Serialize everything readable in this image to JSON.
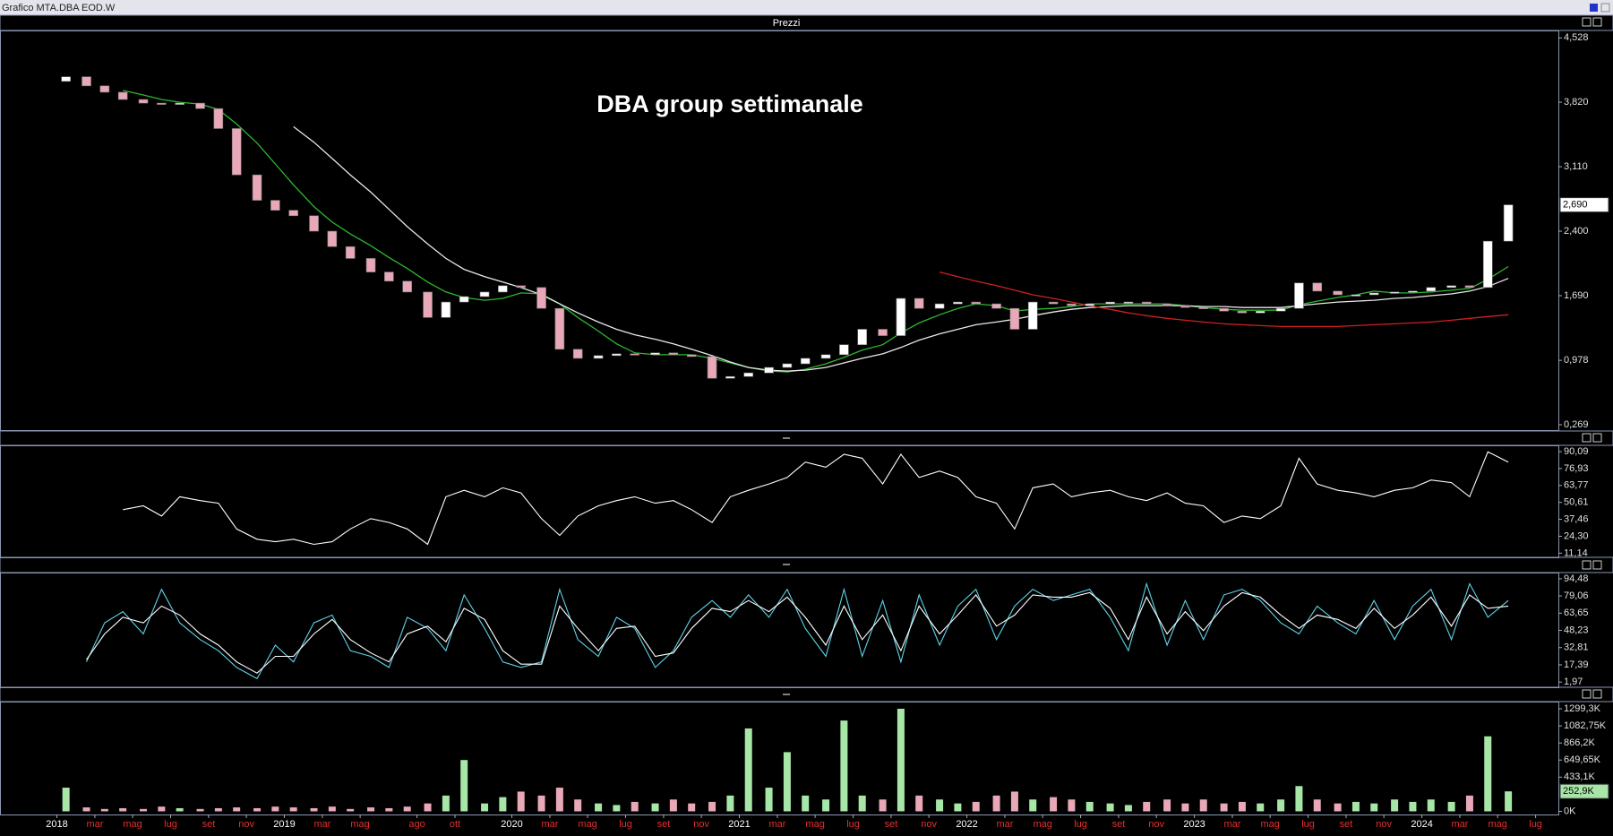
{
  "window_title": "Grafico MTA.DBA EOD.W",
  "panel_title": "Prezzi",
  "chart_data": [
    {
      "type": "candlestick",
      "title": "DBA group settimanale",
      "x": [
        2018.04,
        2018.13,
        2018.21,
        2018.29,
        2018.38,
        2018.46,
        2018.54,
        2018.63,
        2018.71,
        2018.79,
        2018.88,
        2018.96,
        2019.04,
        2019.13,
        2019.21,
        2019.29,
        2019.38,
        2019.46,
        2019.54,
        2019.63,
        2019.71,
        2019.79,
        2019.88,
        2019.96,
        2020.04,
        2020.13,
        2020.21,
        2020.29,
        2020.38,
        2020.46,
        2020.54,
        2020.63,
        2020.71,
        2020.79,
        2020.88,
        2020.96,
        2021.04,
        2021.13,
        2021.21,
        2021.29,
        2021.38,
        2021.46,
        2021.54,
        2021.63,
        2021.71,
        2021.79,
        2021.88,
        2021.96,
        2022.04,
        2022.13,
        2022.21,
        2022.29,
        2022.38,
        2022.46,
        2022.54,
        2022.63,
        2022.71,
        2022.79,
        2022.88,
        2022.96,
        2023.04,
        2023.13,
        2023.21,
        2023.29,
        2023.38,
        2023.46,
        2023.54,
        2023.63,
        2023.71,
        2023.79,
        2023.88,
        2023.96,
        2024.04,
        2024.13,
        2024.21,
        2024.29,
        2024.38
      ],
      "open": [
        4.05,
        4.1,
        4.0,
        3.93,
        3.85,
        3.81,
        3.8,
        3.81,
        3.75,
        3.53,
        3.02,
        2.74,
        2.63,
        2.57,
        2.4,
        2.23,
        2.1,
        1.95,
        1.85,
        1.73,
        1.45,
        1.62,
        1.68,
        1.73,
        1.8,
        1.78,
        1.55,
        1.1,
        1.0,
        1.03,
        1.05,
        1.04,
        1.06,
        1.04,
        1.02,
        0.78,
        0.8,
        0.84,
        0.9,
        0.94,
        1.0,
        1.04,
        1.15,
        1.32,
        1.25,
        1.66,
        1.55,
        1.6,
        1.62,
        1.6,
        1.55,
        1.32,
        1.62,
        1.6,
        1.58,
        1.6,
        1.62,
        1.62,
        1.6,
        1.58,
        1.56,
        1.55,
        1.52,
        1.5,
        1.52,
        1.55,
        1.83,
        1.74,
        1.7,
        1.7,
        1.72,
        1.73,
        1.74,
        1.78,
        1.8,
        1.78,
        2.29
      ],
      "close": [
        4.1,
        4.0,
        3.93,
        3.85,
        3.81,
        3.8,
        3.81,
        3.75,
        3.53,
        3.02,
        2.74,
        2.63,
        2.57,
        2.4,
        2.23,
        2.1,
        1.95,
        1.85,
        1.73,
        1.45,
        1.62,
        1.68,
        1.73,
        1.8,
        1.78,
        1.55,
        1.1,
        1.0,
        1.03,
        1.05,
        1.04,
        1.06,
        1.04,
        1.02,
        0.78,
        0.8,
        0.84,
        0.9,
        0.94,
        1.0,
        1.04,
        1.15,
        1.32,
        1.25,
        1.66,
        1.55,
        1.6,
        1.62,
        1.6,
        1.55,
        1.32,
        1.62,
        1.6,
        1.58,
        1.6,
        1.62,
        1.62,
        1.6,
        1.58,
        1.56,
        1.55,
        1.52,
        1.5,
        1.52,
        1.55,
        1.83,
        1.74,
        1.7,
        1.7,
        1.72,
        1.73,
        1.74,
        1.78,
        1.8,
        1.78,
        2.29,
        2.69
      ],
      "up_color": "#ffffff",
      "down_color": "#e8a8b8",
      "overlays": [
        {
          "color": "#2db82d",
          "values": [
            null,
            null,
            null,
            3.95,
            3.9,
            3.85,
            3.82,
            3.8,
            3.74,
            3.58,
            3.37,
            3.14,
            2.91,
            2.67,
            2.5,
            2.37,
            2.24,
            2.11,
            1.99,
            1.84,
            1.73,
            1.67,
            1.64,
            1.66,
            1.72,
            1.71,
            1.6,
            1.45,
            1.3,
            1.16,
            1.06,
            1.04,
            1.04,
            1.04,
            1.0,
            0.95,
            0.9,
            0.86,
            0.85,
            0.88,
            0.94,
            1.01,
            1.09,
            1.15,
            1.28,
            1.39,
            1.48,
            1.55,
            1.6,
            1.58,
            1.52,
            1.54,
            1.55,
            1.57,
            1.6,
            1.6,
            1.6,
            1.6,
            1.6,
            1.58,
            1.56,
            1.54,
            1.53,
            1.53,
            1.53,
            1.59,
            1.63,
            1.67,
            1.7,
            1.74,
            1.72,
            1.72,
            1.73,
            1.75,
            1.77,
            1.87,
            2.01
          ]
        },
        {
          "color": "#e8e8e8",
          "values": [
            null,
            null,
            null,
            null,
            null,
            null,
            null,
            null,
            null,
            null,
            null,
            null,
            3.55,
            3.38,
            3.2,
            3.02,
            2.83,
            2.64,
            2.45,
            2.26,
            2.1,
            1.98,
            1.9,
            1.84,
            1.78,
            1.7,
            1.6,
            1.5,
            1.4,
            1.32,
            1.26,
            1.21,
            1.16,
            1.1,
            1.03,
            0.96,
            0.9,
            0.87,
            0.86,
            0.87,
            0.9,
            0.95,
            1.0,
            1.05,
            1.12,
            1.2,
            1.27,
            1.32,
            1.37,
            1.4,
            1.43,
            1.47,
            1.51,
            1.54,
            1.56,
            1.57,
            1.58,
            1.58,
            1.58,
            1.58,
            1.57,
            1.57,
            1.56,
            1.56,
            1.56,
            1.58,
            1.6,
            1.62,
            1.63,
            1.64,
            1.66,
            1.67,
            1.69,
            1.71,
            1.74,
            1.79,
            1.88
          ]
        },
        {
          "color": "#d02020",
          "values": [
            null,
            null,
            null,
            null,
            null,
            null,
            null,
            null,
            null,
            null,
            null,
            null,
            null,
            null,
            null,
            null,
            null,
            null,
            null,
            null,
            null,
            null,
            null,
            null,
            null,
            null,
            null,
            null,
            null,
            null,
            null,
            null,
            null,
            null,
            null,
            null,
            null,
            null,
            null,
            null,
            null,
            null,
            null,
            null,
            null,
            null,
            1.95,
            1.9,
            1.85,
            1.8,
            1.75,
            1.7,
            1.66,
            1.62,
            1.58,
            1.54,
            1.5,
            1.47,
            1.44,
            1.42,
            1.4,
            1.38,
            1.37,
            1.36,
            1.35,
            1.35,
            1.35,
            1.35,
            1.36,
            1.37,
            1.38,
            1.39,
            1.4,
            1.42,
            1.44,
            1.46,
            1.48
          ]
        }
      ],
      "last_value": {
        "value": 2.69,
        "label": "2,690"
      },
      "xlim": [
        2017.75,
        2024.6
      ],
      "ylim": [
        0.21,
        4.61
      ],
      "yticks": [
        {
          "value": 4.528,
          "label": "4,528"
        },
        {
          "value": 3.82,
          "label": "3,820"
        },
        {
          "value": 3.11,
          "label": "3,110"
        },
        {
          "value": 2.4,
          "label": "2,400"
        },
        {
          "value": 1.69,
          "label": "1,690"
        },
        {
          "value": 0.978,
          "label": "0,978"
        },
        {
          "value": 0.269,
          "label": "0,269"
        }
      ]
    },
    {
      "type": "line",
      "series": [
        {
          "color": "#ffffff",
          "values": [
            null,
            null,
            null,
            45,
            48,
            40,
            55,
            52,
            50,
            30,
            22,
            20,
            22,
            18,
            20,
            30,
            38,
            35,
            30,
            18,
            55,
            60,
            55,
            62,
            58,
            38,
            25,
            40,
            48,
            52,
            55,
            50,
            52,
            45,
            35,
            55,
            60,
            65,
            70,
            82,
            78,
            88,
            85,
            65,
            88,
            70,
            75,
            70,
            55,
            50,
            30,
            62,
            65,
            55,
            58,
            60,
            55,
            52,
            58,
            50,
            48,
            35,
            40,
            38,
            48,
            85,
            65,
            60,
            58,
            55,
            60,
            62,
            68,
            66,
            55,
            90,
            82
          ]
        }
      ],
      "xlim": [
        2017.75,
        2024.6
      ],
      "ylim": [
        7.9,
        95
      ],
      "yticks": [
        {
          "value": 90.09,
          "label": "90,09"
        },
        {
          "value": 76.93,
          "label": "76,93"
        },
        {
          "value": 63.77,
          "label": "63,77"
        },
        {
          "value": 50.61,
          "label": "50,61"
        },
        {
          "value": 37.46,
          "label": "37,46"
        },
        {
          "value": 24.3,
          "label": "24,30"
        },
        {
          "value": 11.14,
          "label": "11,14"
        }
      ]
    },
    {
      "type": "line",
      "series": [
        {
          "color": "#5fd3e8",
          "values": [
            null,
            20,
            55,
            65,
            45,
            85,
            55,
            40,
            30,
            15,
            5,
            35,
            20,
            55,
            62,
            30,
            25,
            15,
            60,
            50,
            30,
            80,
            50,
            20,
            15,
            20,
            85,
            40,
            25,
            60,
            50,
            15,
            30,
            60,
            75,
            60,
            80,
            60,
            85,
            50,
            25,
            85,
            25,
            75,
            20,
            80,
            35,
            70,
            85,
            40,
            70,
            85,
            75,
            80,
            85,
            60,
            30,
            90,
            35,
            75,
            40,
            80,
            85,
            75,
            55,
            45,
            70,
            55,
            45,
            75,
            40,
            70,
            85,
            40,
            90,
            60,
            75
          ]
        },
        {
          "color": "#ffffff",
          "values": [
            null,
            22,
            45,
            60,
            55,
            70,
            62,
            45,
            35,
            20,
            10,
            25,
            25,
            45,
            58,
            40,
            28,
            20,
            45,
            52,
            38,
            68,
            58,
            30,
            18,
            18,
            70,
            50,
            30,
            50,
            52,
            25,
            28,
            50,
            68,
            65,
            75,
            65,
            78,
            60,
            35,
            70,
            40,
            62,
            30,
            70,
            45,
            62,
            80,
            52,
            62,
            80,
            78,
            78,
            82,
            68,
            40,
            78,
            45,
            65,
            48,
            70,
            82,
            78,
            62,
            50,
            62,
            58,
            50,
            68,
            50,
            62,
            78,
            52,
            80,
            68,
            70
          ]
        }
      ],
      "xlim": [
        2017.75,
        2024.6
      ],
      "ylim": [
        -2.7,
        100
      ],
      "yticks": [
        {
          "value": 94.48,
          "label": "94,48"
        },
        {
          "value": 79.06,
          "label": "79,06"
        },
        {
          "value": 63.65,
          "label": "63,65"
        },
        {
          "value": 48.23,
          "label": "48,23"
        },
        {
          "value": 32.81,
          "label": "32,81"
        },
        {
          "value": 17.39,
          "label": "17,39"
        },
        {
          "value": 1.97,
          "label": "1,97"
        }
      ]
    },
    {
      "type": "bar",
      "values": [
        300,
        50,
        30,
        40,
        30,
        60,
        40,
        30,
        40,
        50,
        40,
        60,
        50,
        40,
        60,
        30,
        50,
        40,
        60,
        100,
        200,
        650,
        100,
        180,
        250,
        200,
        300,
        150,
        100,
        80,
        120,
        100,
        150,
        100,
        120,
        200,
        1050,
        300,
        750,
        200,
        150,
        1150,
        200,
        150,
        1299.3,
        200,
        150,
        100,
        120,
        200,
        250,
        150,
        180,
        150,
        120,
        100,
        80,
        120,
        150,
        100,
        150,
        100,
        120,
        100,
        150,
        320,
        150,
        100,
        120,
        100,
        150,
        120,
        150,
        120,
        200,
        950,
        252.9
      ],
      "up_color": "#a8e6a8",
      "down_color": "#e8a8b8",
      "last_value": {
        "value": 252.9,
        "label": "252,9K"
      },
      "last_value_color": "#a8e6a8",
      "xlim": [
        2017.75,
        2024.6
      ],
      "ylim": [
        -40,
        1390
      ],
      "yticks": [
        {
          "value": 1299.3,
          "label": "1299,3K"
        },
        {
          "value": 1082.75,
          "label": "1082,75K"
        },
        {
          "value": 866.2,
          "label": "866,2K"
        },
        {
          "value": 649.65,
          "label": "649,65K"
        },
        {
          "value": 433.1,
          "label": "433,1K"
        },
        {
          "value": 0,
          "label": "0K"
        }
      ],
      "year_tick_color": "#ffffff",
      "month_tick_color": "#e03030",
      "xticks": [
        2018,
        {
          "value": 2018.167,
          "label": "mar"
        },
        {
          "value": 2018.333,
          "label": "mag"
        },
        {
          "value": 2018.5,
          "label": "lug"
        },
        {
          "value": 2018.667,
          "label": "set"
        },
        {
          "value": 2018.833,
          "label": "nov"
        },
        2019,
        {
          "value": 2019.167,
          "label": "mar"
        },
        {
          "value": 2019.333,
          "label": "mag"
        },
        {
          "value": 2019.583,
          "label": "ago"
        },
        {
          "value": 2019.75,
          "label": "ott"
        },
        2020,
        {
          "value": 2020.167,
          "label": "mar"
        },
        {
          "value": 2020.333,
          "label": "mag"
        },
        {
          "value": 2020.5,
          "label": "lug"
        },
        {
          "value": 2020.667,
          "label": "set"
        },
        {
          "value": 2020.833,
          "label": "nov"
        },
        2021,
        {
          "value": 2021.167,
          "label": "mar"
        },
        {
          "value": 2021.333,
          "label": "mag"
        },
        {
          "value": 2021.5,
          "label": "lug"
        },
        {
          "value": 2021.667,
          "label": "set"
        },
        {
          "value": 2021.833,
          "label": "nov"
        },
        2022,
        {
          "value": 2022.167,
          "label": "mar"
        },
        {
          "value": 2022.333,
          "label": "mag"
        },
        {
          "value": 2022.5,
          "label": "lug"
        },
        {
          "value": 2022.667,
          "label": "set"
        },
        {
          "value": 2022.833,
          "label": "nov"
        },
        2023,
        {
          "value": 2023.167,
          "label": "mar"
        },
        {
          "value": 2023.333,
          "label": "mag"
        },
        {
          "value": 2023.5,
          "label": "lug"
        },
        {
          "value": 2023.667,
          "label": "set"
        },
        {
          "value": 2023.833,
          "label": "nov"
        },
        2024,
        {
          "value": 2024.167,
          "label": "mar"
        },
        {
          "value": 2024.333,
          "label": "mag"
        },
        {
          "value": 2024.5,
          "label": "lug"
        }
      ]
    }
  ]
}
